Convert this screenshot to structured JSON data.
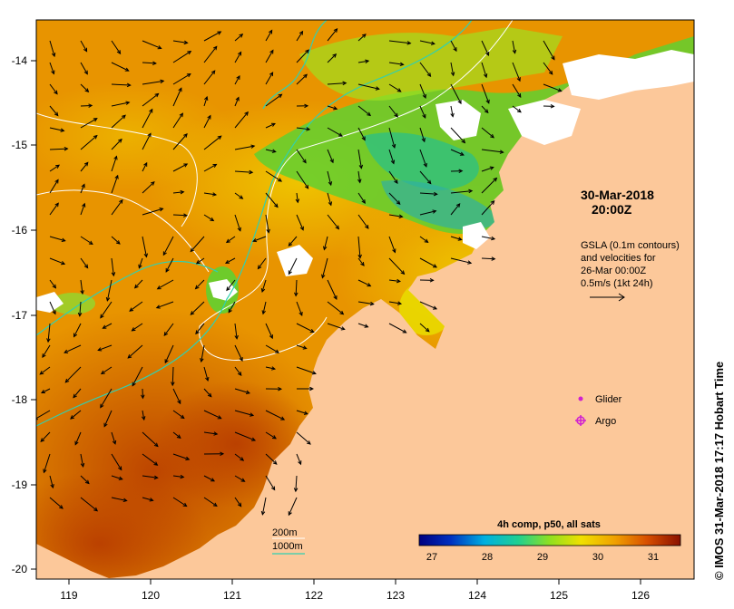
{
  "map": {
    "x_axis_ticks": [
      "119",
      "120",
      "121",
      "122",
      "123",
      "124",
      "125",
      "126"
    ],
    "y_axis_ticks": [
      "-14",
      "-15",
      "-16",
      "-17",
      "-18",
      "-19",
      "-20"
    ],
    "title": {
      "date": "30-Mar-2018",
      "time": "20:00Z"
    },
    "info_block": {
      "line1": "GSLA (0.1m contours)",
      "line2": "and velocities for",
      "line3": "26-Mar 00:00Z",
      "line4": "0.5m/s (1kt 24h)"
    },
    "legend": {
      "glider_label": "Glider",
      "argo_label": "Argo",
      "glider_color": "#d020d0",
      "argo_color": "#d020d0"
    },
    "bathymetry": {
      "label_200": "200m",
      "label_1000": "1000m",
      "color_200": "#ffffff",
      "color_1000": "#30d0b0"
    },
    "colorbar": {
      "title": "4h comp, p50, all sats",
      "ticks": [
        "27",
        "28",
        "29",
        "30",
        "31"
      ]
    },
    "credit": "©  IMOS 31-Mar-2018 17:17 Hobart Time",
    "colors": {
      "land": "#fcc89a",
      "cloud": "#ffffff",
      "sea_warm": "#c85000",
      "sea_mid": "#e89800",
      "sea_cool": "#40d030"
    }
  }
}
